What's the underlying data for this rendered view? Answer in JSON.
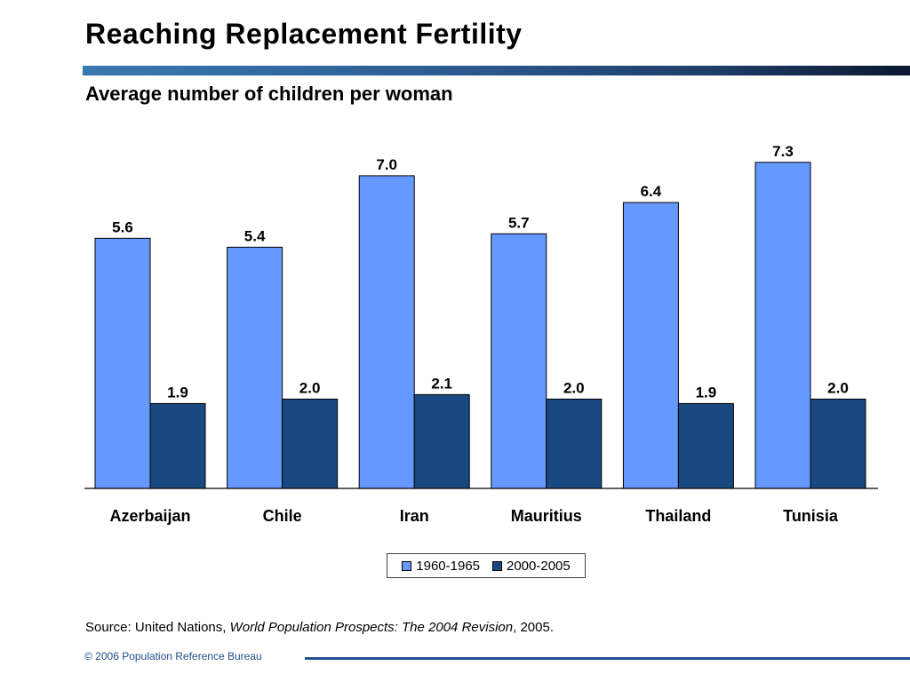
{
  "header": {
    "title": "Reaching Replacement Fertility",
    "subtitle": "Average number of children per woman"
  },
  "colors": {
    "series_1": "#6699ff",
    "series_2": "#1a4880",
    "title_rule": "#2e5f96",
    "footer": "#1f4e8c"
  },
  "chart_data": {
    "type": "bar",
    "title": "Reaching Replacement Fertility",
    "subtitle": "Average number of children per woman",
    "categories": [
      "Azerbaijan",
      "Chile",
      "Iran",
      "Mauritius",
      "Thailand",
      "Tunisia"
    ],
    "series": [
      {
        "name": "1960-1965",
        "values": [
          5.6,
          5.4,
          7.0,
          5.7,
          6.4,
          7.3
        ],
        "labels": [
          "5.6",
          "5.4",
          "7.0",
          "5.7",
          "6.4",
          "7.3"
        ]
      },
      {
        "name": "2000-2005",
        "values": [
          1.9,
          2.0,
          2.1,
          2.0,
          1.9,
          2.0
        ],
        "labels": [
          "1.9",
          "2.0",
          "2.1",
          "2.0",
          "1.9",
          "2.0"
        ]
      }
    ],
    "ylim": [
      0,
      7.3
    ],
    "grid": false,
    "legend": "bottom-center"
  },
  "footer": {
    "source_prefix": "Source: United Nations, ",
    "source_title": "World Population Prospects: The 2004 Revision",
    "source_suffix": ", 2005.",
    "copyright": "© 2006 Population Reference Bureau"
  }
}
